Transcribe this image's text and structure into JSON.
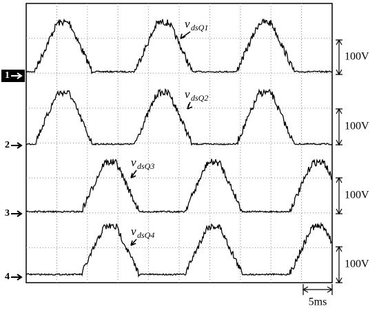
{
  "channels": [
    {
      "marker": "1",
      "trace_symbol": "v",
      "trace_subscript": "dsQ1",
      "scale": "100V"
    },
    {
      "marker": "2",
      "trace_symbol": "v",
      "trace_subscript": "dsQ2",
      "scale": "100V"
    },
    {
      "marker": "3",
      "trace_symbol": "v",
      "trace_subscript": "dsQ3",
      "scale": "100V"
    },
    {
      "marker": "4",
      "trace_symbol": "v",
      "trace_subscript": "dsQ4",
      "scale": "100V"
    }
  ],
  "time_scale": "5ms"
}
